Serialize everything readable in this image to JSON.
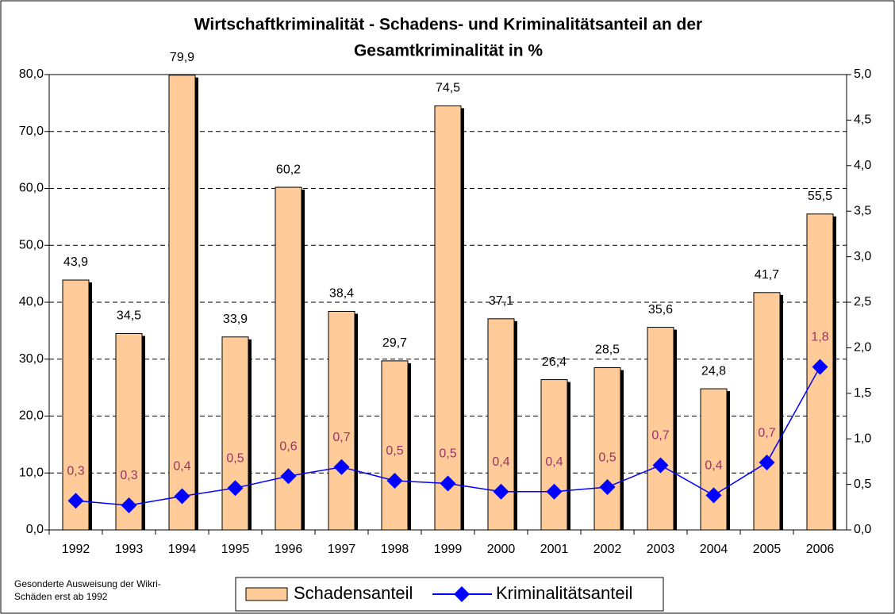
{
  "chart_data": {
    "type": "bar-line",
    "title": [
      "Wirtschaftkriminalität - Schadens- und Kriminalitätsanteil an der",
      "Gesamtkriminalität in %"
    ],
    "footnote": [
      "Gesonderte Ausweisung der Wikri-",
      "Schäden erst ab 1992"
    ],
    "categories": [
      "1992",
      "1993",
      "1994",
      "1995",
      "1996",
      "1997",
      "1998",
      "1999",
      "2000",
      "2001",
      "2002",
      "2003",
      "2004",
      "2005",
      "2006"
    ],
    "series": [
      {
        "name": "Schadensanteil",
        "type": "bar",
        "color": "#FFCC99",
        "values": [
          43.9,
          34.5,
          79.9,
          33.9,
          60.2,
          38.4,
          29.7,
          74.5,
          37.1,
          26.4,
          28.5,
          35.6,
          24.8,
          41.7,
          55.5
        ],
        "value_labels": [
          "43,9",
          "34,5",
          "79,9",
          "33,9",
          "60,2",
          "38,4",
          "29,7",
          "74,5",
          "37,1",
          "26,4",
          "28,5",
          "35,6",
          "24,8",
          "41,7",
          "55,5"
        ]
      },
      {
        "name": "Kriminalitätsanteil",
        "type": "line",
        "axis": "y2",
        "color": "#0000FF",
        "label_color": "#993366",
        "values": [
          0.32,
          0.27,
          0.37,
          0.46,
          0.59,
          0.69,
          0.54,
          0.51,
          0.42,
          0.42,
          0.47,
          0.71,
          0.38,
          0.74,
          1.79
        ],
        "value_labels": [
          "0,3",
          "0,3",
          "0,4",
          "0,5",
          "0,6",
          "0,7",
          "0,5",
          "0,5",
          "0,4",
          "0,4",
          "0,5",
          "0,7",
          "0,4",
          "0,7",
          "1,8"
        ]
      }
    ],
    "ylim": [
      0,
      80
    ],
    "yticks": [
      {
        "value": 0,
        "label": "0,0"
      },
      {
        "value": 10,
        "label": "10,0"
      },
      {
        "value": 20,
        "label": "20,0"
      },
      {
        "value": 30,
        "label": "30,0"
      },
      {
        "value": 40,
        "label": "40,0"
      },
      {
        "value": 50,
        "label": "50,0"
      },
      {
        "value": 60,
        "label": "60,0"
      },
      {
        "value": 70,
        "label": "70,0"
      },
      {
        "value": 80,
        "label": "80,0"
      }
    ],
    "y2lim": [
      0,
      5
    ],
    "y2ticks": [
      {
        "value": 0,
        "label": "0,0"
      },
      {
        "value": 0.5,
        "label": "0,5"
      },
      {
        "value": 1,
        "label": "1,0"
      },
      {
        "value": 1.5,
        "label": "1,5"
      },
      {
        "value": 2,
        "label": "2,0"
      },
      {
        "value": 2.5,
        "label": "2,5"
      },
      {
        "value": 3,
        "label": "3,0"
      },
      {
        "value": 3.5,
        "label": "3,5"
      },
      {
        "value": 4,
        "label": "4,0"
      },
      {
        "value": 4.5,
        "label": "4,5"
      },
      {
        "value": 5,
        "label": "5,0"
      }
    ],
    "grid": true,
    "legend": "bottom"
  }
}
